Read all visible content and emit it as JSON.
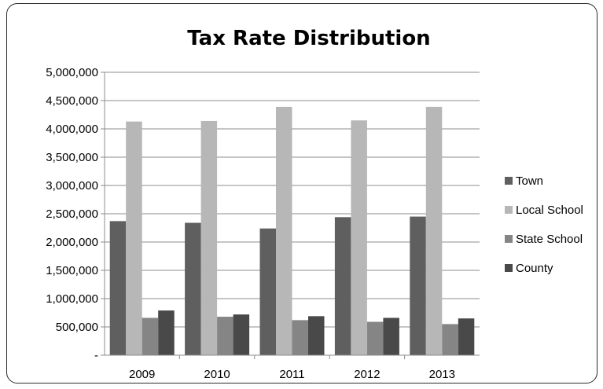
{
  "chart_data": {
    "type": "bar",
    "title": "Tax Rate Distribution",
    "categories": [
      "2009",
      "2010",
      "2011",
      "2012",
      "2013"
    ],
    "series": [
      {
        "name": "Town",
        "values": [
          2370000,
          2340000,
          2240000,
          2440000,
          2450000
        ],
        "color": "#5f5f5f"
      },
      {
        "name": "Local School",
        "values": [
          4130000,
          4140000,
          4390000,
          4150000,
          4390000
        ],
        "color": "#b7b7b7"
      },
      {
        "name": "State School",
        "values": [
          660000,
          680000,
          620000,
          590000,
          550000
        ],
        "color": "#858585"
      },
      {
        "name": "County",
        "values": [
          790000,
          720000,
          690000,
          660000,
          650000
        ],
        "color": "#494949"
      }
    ],
    "ylim": [
      0,
      5000000
    ],
    "yticks": [
      0,
      500000,
      1000000,
      1500000,
      2000000,
      2500000,
      3000000,
      3500000,
      4000000,
      4500000,
      5000000
    ],
    "ytick_labels": [
      "-",
      "500,000",
      "1,000,000",
      "1,500,000",
      "2,000,000",
      "2,500,000",
      "3,000,000",
      "3,500,000",
      "4,000,000",
      "4,500,000",
      "5,000,000"
    ],
    "grid": true,
    "legend": "right"
  }
}
